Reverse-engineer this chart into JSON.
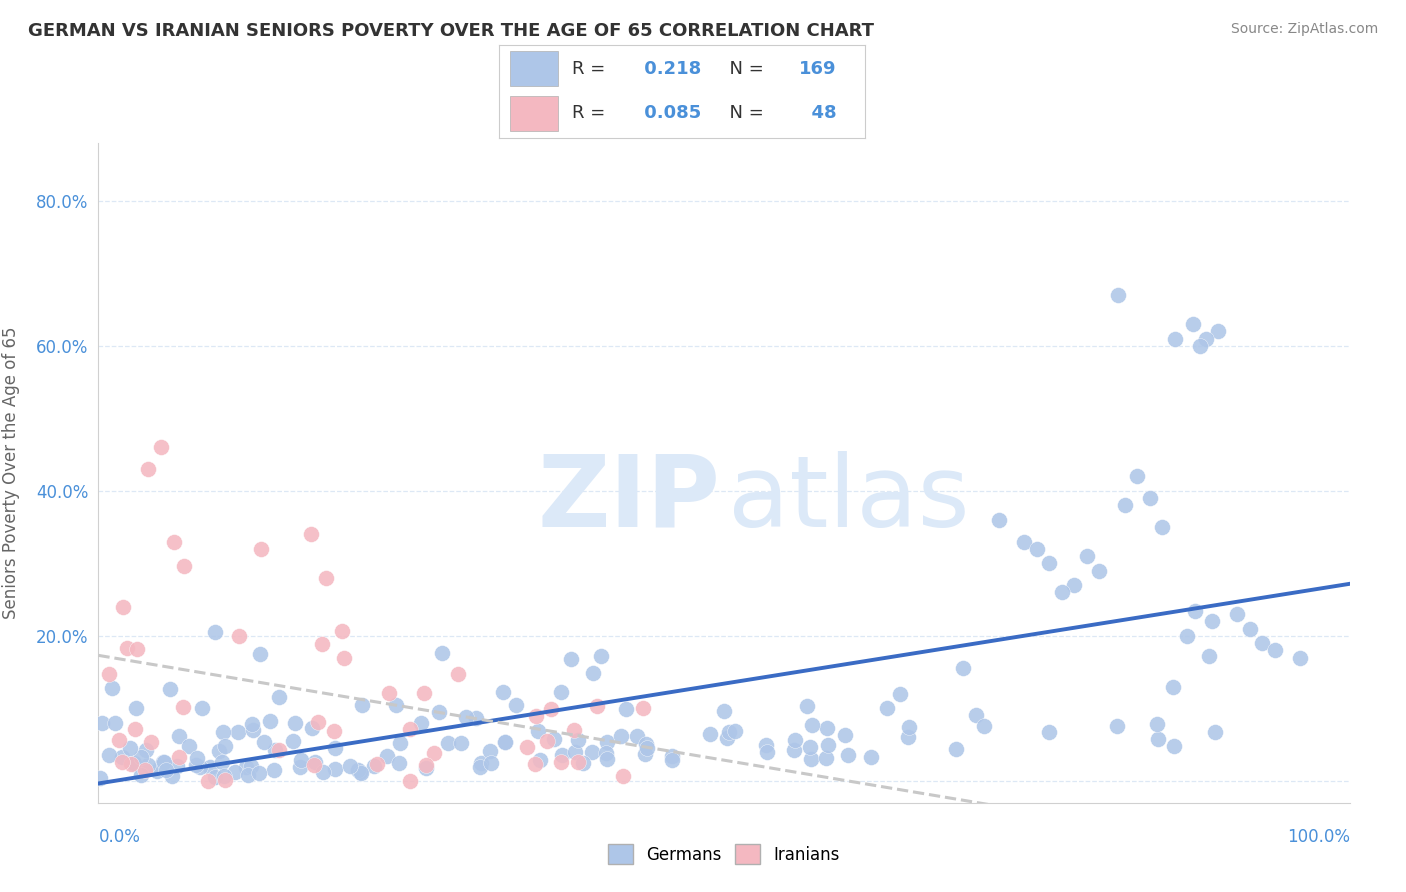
{
  "title": "GERMAN VS IRANIAN SENIORS POVERTY OVER THE AGE OF 65 CORRELATION CHART",
  "source": "Source: ZipAtlas.com",
  "ylabel": "Seniors Poverty Over the Age of 65",
  "german_R": 0.218,
  "german_N": 169,
  "iranian_R": 0.085,
  "iranian_N": 48,
  "german_color": "#aec6e8",
  "iranian_color": "#f4b8c1",
  "german_line_color": "#3a6bc4",
  "iranian_line_color": "#c8c8c8",
  "watermark_color": "#dce9f8",
  "label_color": "#4a90d9",
  "title_color": "#333333",
  "source_color": "#888888",
  "grid_color": "#dde8f5",
  "background_color": "#ffffff",
  "ytick_vals": [
    0.0,
    0.2,
    0.4,
    0.6,
    0.8
  ],
  "ytick_labels": [
    "",
    "20.0%",
    "40.0%",
    "60.0%",
    "80.0%"
  ],
  "xlim": [
    0.0,
    1.0
  ],
  "ylim": [
    -0.03,
    0.88
  ],
  "legend_entries": [
    "Germans",
    "Iranians"
  ],
  "figsize": [
    14.06,
    8.92
  ],
  "dpi": 100
}
